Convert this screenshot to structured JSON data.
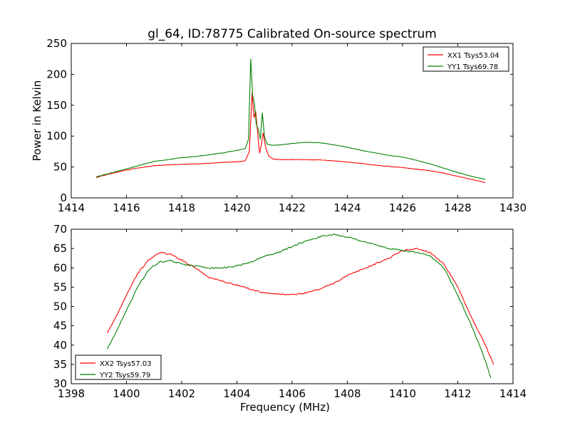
{
  "figure": {
    "title": "gl_64, ID:78775 Calibrated On-source spectrum"
  },
  "chart_data": [
    {
      "type": "line",
      "title": "gl_64, ID:78775 Calibrated On-source spectrum",
      "xlabel": "",
      "ylabel": "Power in Kelvin",
      "xlim": [
        1414,
        1430
      ],
      "ylim": [
        0,
        250
      ],
      "xticks": [
        1414,
        1416,
        1418,
        1420,
        1422,
        1424,
        1426,
        1428,
        1430
      ],
      "yticks": [
        0,
        50,
        100,
        150,
        200,
        250
      ],
      "grid": false,
      "legend_position": "upper-right",
      "series": [
        {
          "name": "XX1 Tsys53.04",
          "color": "#ff0000",
          "points": [
            [
              1414.9,
              33
            ],
            [
              1415.5,
              40
            ],
            [
              1416,
              45
            ],
            [
              1416.5,
              49
            ],
            [
              1417,
              52
            ],
            [
              1417.5,
              53.5
            ],
            [
              1418,
              54.5
            ],
            [
              1418.5,
              55
            ],
            [
              1419,
              56
            ],
            [
              1419.5,
              57.5
            ],
            [
              1420,
              58.5
            ],
            [
              1420.3,
              60
            ],
            [
              1420.45,
              75
            ],
            [
              1420.55,
              170
            ],
            [
              1420.62,
              130
            ],
            [
              1420.68,
              140
            ],
            [
              1420.75,
              105
            ],
            [
              1420.82,
              72
            ],
            [
              1420.9,
              90
            ],
            [
              1420.95,
              105
            ],
            [
              1421.05,
              80
            ],
            [
              1421.15,
              68
            ],
            [
              1421.3,
              63
            ],
            [
              1421.6,
              62
            ],
            [
              1422,
              62
            ],
            [
              1422.5,
              62
            ],
            [
              1423,
              61.5
            ],
            [
              1423.5,
              60
            ],
            [
              1424,
              58
            ],
            [
              1424.5,
              56
            ],
            [
              1425,
              53
            ],
            [
              1425.5,
              51
            ],
            [
              1426,
              49
            ],
            [
              1426.5,
              46.5
            ],
            [
              1427,
              44
            ],
            [
              1427.5,
              40
            ],
            [
              1428,
              35
            ],
            [
              1428.5,
              30
            ],
            [
              1429,
              25
            ]
          ]
        },
        {
          "name": "YY1 Tsys69.78",
          "color": "#008000",
          "points": [
            [
              1414.9,
              34
            ],
            [
              1415.5,
              41
            ],
            [
              1416,
              47
            ],
            [
              1416.5,
              53
            ],
            [
              1417,
              59
            ],
            [
              1417.5,
              62
            ],
            [
              1418,
              65
            ],
            [
              1418.5,
              67
            ],
            [
              1419,
              70
            ],
            [
              1419.5,
              73
            ],
            [
              1420,
              77
            ],
            [
              1420.3,
              80
            ],
            [
              1420.42,
              95
            ],
            [
              1420.5,
              225
            ],
            [
              1420.57,
              165
            ],
            [
              1420.63,
              155
            ],
            [
              1420.7,
              120
            ],
            [
              1420.78,
              110
            ],
            [
              1420.85,
              95
            ],
            [
              1420.92,
              138
            ],
            [
              1421.0,
              98
            ],
            [
              1421.1,
              87
            ],
            [
              1421.3,
              85
            ],
            [
              1421.6,
              86
            ],
            [
              1422,
              88
            ],
            [
              1422.5,
              90
            ],
            [
              1423,
              89.5
            ],
            [
              1423.5,
              86
            ],
            [
              1424,
              82
            ],
            [
              1424.5,
              77
            ],
            [
              1425,
              73
            ],
            [
              1425.5,
              69
            ],
            [
              1426,
              66
            ],
            [
              1426.5,
              61
            ],
            [
              1427,
              55
            ],
            [
              1427.5,
              48
            ],
            [
              1428,
              41
            ],
            [
              1428.5,
              35
            ],
            [
              1429,
              30
            ]
          ]
        }
      ]
    },
    {
      "type": "line",
      "title": "",
      "xlabel": "Frequency (MHz)",
      "ylabel": "",
      "xlim": [
        1398,
        1414
      ],
      "ylim": [
        30,
        70
      ],
      "xticks": [
        1398,
        1400,
        1402,
        1404,
        1406,
        1408,
        1410,
        1412,
        1414
      ],
      "yticks": [
        30,
        35,
        40,
        45,
        50,
        55,
        60,
        65,
        70
      ],
      "grid": false,
      "legend_position": "lower-left",
      "series": [
        {
          "name": "XX2 Tsys57.03",
          "color": "#ff0000",
          "points": [
            [
              1399.3,
              43
            ],
            [
              1399.6,
              47
            ],
            [
              1400,
              53
            ],
            [
              1400.4,
              58.5
            ],
            [
              1400.8,
              62
            ],
            [
              1401.2,
              64
            ],
            [
              1401.6,
              63.5
            ],
            [
              1402,
              62
            ],
            [
              1402.5,
              60
            ],
            [
              1403,
              57.5
            ],
            [
              1403.5,
              56.5
            ],
            [
              1404,
              55.5
            ],
            [
              1404.5,
              54.5
            ],
            [
              1405,
              53.5
            ],
            [
              1405.5,
              53.2
            ],
            [
              1406,
              53
            ],
            [
              1406.5,
              53.5
            ],
            [
              1407,
              54.5
            ],
            [
              1407.5,
              56
            ],
            [
              1408,
              58
            ],
            [
              1408.5,
              59.5
            ],
            [
              1409,
              61
            ],
            [
              1409.5,
              62.5
            ],
            [
              1410,
              64.5
            ],
            [
              1410.5,
              65
            ],
            [
              1411,
              64
            ],
            [
              1411.5,
              61
            ],
            [
              1412,
              55
            ],
            [
              1412.5,
              47
            ],
            [
              1413,
              40
            ],
            [
              1413.3,
              35
            ]
          ]
        },
        {
          "name": "YY2 Tsys59.79",
          "color": "#008000",
          "points": [
            [
              1399.3,
              39
            ],
            [
              1399.6,
              43
            ],
            [
              1400,
              49
            ],
            [
              1400.4,
              55
            ],
            [
              1400.8,
              59.5
            ],
            [
              1401.2,
              61.5
            ],
            [
              1401.6,
              61.8
            ],
            [
              1402,
              61
            ],
            [
              1402.5,
              60.5
            ],
            [
              1403,
              60
            ],
            [
              1403.5,
              60
            ],
            [
              1404,
              60.5
            ],
            [
              1404.5,
              61.5
            ],
            [
              1405,
              63
            ],
            [
              1405.5,
              64
            ],
            [
              1406,
              65.5
            ],
            [
              1406.5,
              67
            ],
            [
              1407,
              68
            ],
            [
              1407.5,
              68.7
            ],
            [
              1408,
              68
            ],
            [
              1408.5,
              67
            ],
            [
              1409,
              66
            ],
            [
              1409.5,
              65
            ],
            [
              1410,
              64.5
            ],
            [
              1410.5,
              64
            ],
            [
              1411,
              63
            ],
            [
              1411.5,
              60
            ],
            [
              1412,
              53
            ],
            [
              1412.5,
              45
            ],
            [
              1413,
              36
            ],
            [
              1413.2,
              31.5
            ]
          ]
        }
      ]
    }
  ]
}
